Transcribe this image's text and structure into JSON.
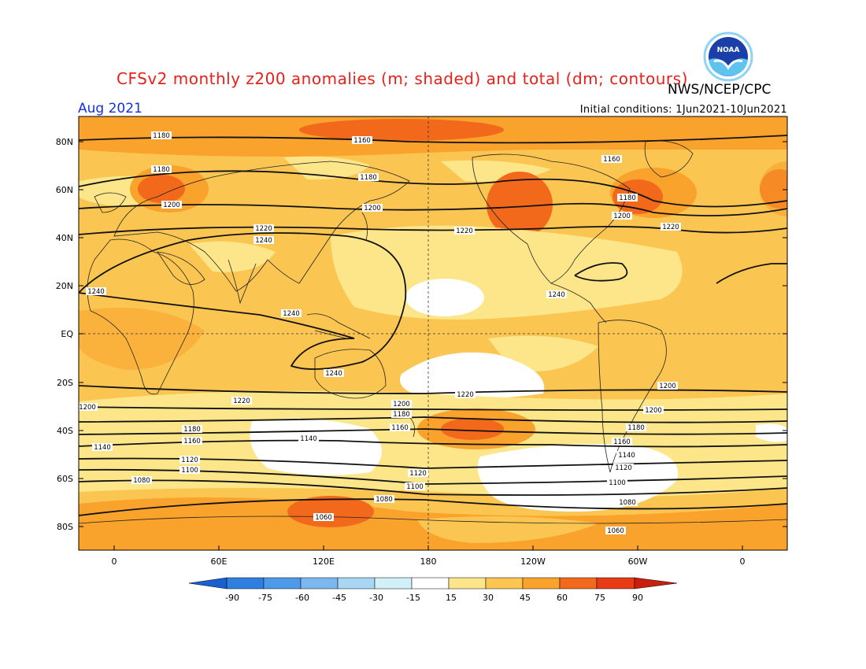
{
  "header": {
    "title": "CFSv2 monthly z200 anomalies (m; shaded) and total (dm; contours)",
    "agency": "NWS/NCEP/CPC",
    "month": "Aug 2021",
    "initial_conditions": "Initial conditions: 1Jun2021-10Jun2021",
    "logo_text": "NOAA"
  },
  "axes": {
    "lat_labels": [
      "80N",
      "60N",
      "40N",
      "20N",
      "EQ",
      "20S",
      "40S",
      "60S",
      "80S"
    ],
    "lon_labels": [
      "0",
      "60E",
      "120E",
      "180",
      "120W",
      "60W",
      "0"
    ]
  },
  "colorbar": {
    "labels": [
      "-90",
      "-75",
      "-60",
      "-45",
      "-30",
      "-15",
      "15",
      "30",
      "45",
      "60",
      "75",
      "90"
    ],
    "colors": [
      "#1a5fd0",
      "#2f7fe0",
      "#4f9ae8",
      "#7cb8ee",
      "#a9d6f2",
      "#d2f0f8",
      "#ffffff",
      "#fde68a",
      "#fbc552",
      "#f9a22c",
      "#f2691c",
      "#e83a14",
      "#c91f0c"
    ]
  },
  "contours": {
    "labels": [
      "1180",
      "1160",
      "1180",
      "1180",
      "1160",
      "1200",
      "1200",
      "1180",
      "1220",
      "1240",
      "1220",
      "1200",
      "1240",
      "1220",
      "1240",
      "1240",
      "1220",
      "1200",
      "1180",
      "1160",
      "1140",
      "1120",
      "1100",
      "1080",
      "1060",
      "1220",
      "1200",
      "1180",
      "1160",
      "1140",
      "1120",
      "1100",
      "1080",
      "1060",
      "1240",
      "1200",
      "1200",
      "1180",
      "1160",
      "1140",
      "1120",
      "1100",
      "1080",
      "1060",
      "1240"
    ]
  }
}
